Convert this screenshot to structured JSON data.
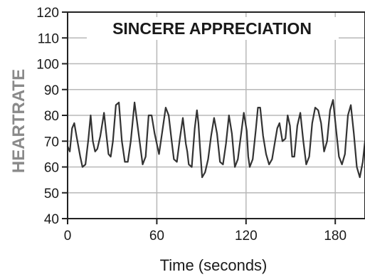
{
  "chart_data": {
    "type": "line",
    "title": "SINCERE APPRECIATION",
    "xlabel": "Time (seconds)",
    "ylabel": "HEARTRATE",
    "xlim": [
      0,
      200
    ],
    "ylim": [
      40,
      120
    ],
    "x_ticks": [
      0,
      60,
      120,
      180
    ],
    "y_ticks": [
      40,
      50,
      60,
      70,
      80,
      90,
      100,
      110,
      120
    ],
    "grid": true,
    "series": [
      {
        "color": "#333333",
        "points": [
          [
            0.0,
            68
          ],
          [
            1.5,
            66
          ],
          [
            3.0,
            75
          ],
          [
            4.5,
            77
          ],
          [
            6.0,
            72
          ],
          [
            8.5,
            64
          ],
          [
            10.0,
            60
          ],
          [
            12.0,
            61
          ],
          [
            14.0,
            71
          ],
          [
            15.5,
            80
          ],
          [
            17.0,
            70
          ],
          [
            18.5,
            66
          ],
          [
            20.0,
            67
          ],
          [
            22.0,
            72
          ],
          [
            24.5,
            81
          ],
          [
            26.0,
            73
          ],
          [
            27.5,
            65
          ],
          [
            29.0,
            64
          ],
          [
            30.5,
            70
          ],
          [
            32.5,
            84
          ],
          [
            34.5,
            85
          ],
          [
            36.5,
            70
          ],
          [
            38.5,
            62
          ],
          [
            40.5,
            62
          ],
          [
            42.5,
            70
          ],
          [
            45.0,
            85
          ],
          [
            47.5,
            74
          ],
          [
            50.5,
            61
          ],
          [
            52.5,
            64
          ],
          [
            54.5,
            80
          ],
          [
            56.5,
            80
          ],
          [
            58.5,
            73
          ],
          [
            61.5,
            65
          ],
          [
            63.5,
            73
          ],
          [
            66.0,
            83
          ],
          [
            68.0,
            80
          ],
          [
            70.0,
            70
          ],
          [
            71.5,
            63
          ],
          [
            73.5,
            62
          ],
          [
            75.5,
            71
          ],
          [
            77.5,
            79
          ],
          [
            79.5,
            69
          ],
          [
            80.5,
            66
          ],
          [
            81.5,
            61
          ],
          [
            83.5,
            60
          ],
          [
            85.5,
            75
          ],
          [
            87.0,
            82
          ],
          [
            88.0,
            77
          ],
          [
            89.0,
            68
          ],
          [
            90.5,
            56
          ],
          [
            92.5,
            58
          ],
          [
            94.5,
            63
          ],
          [
            96.5,
            72
          ],
          [
            98.5,
            79
          ],
          [
            100.5,
            73
          ],
          [
            102.5,
            62
          ],
          [
            104.5,
            61
          ],
          [
            106.5,
            69
          ],
          [
            108.5,
            80
          ],
          [
            110.5,
            73
          ],
          [
            112.5,
            60
          ],
          [
            114.5,
            63
          ],
          [
            116.5,
            72
          ],
          [
            118.5,
            81
          ],
          [
            120.5,
            74
          ],
          [
            121.5,
            64
          ],
          [
            122.5,
            60
          ],
          [
            124.5,
            63
          ],
          [
            126.5,
            74
          ],
          [
            128.0,
            83
          ],
          [
            129.5,
            83
          ],
          [
            131.5,
            72
          ],
          [
            133.5,
            65
          ],
          [
            135.5,
            61
          ],
          [
            137.5,
            63
          ],
          [
            139.5,
            70
          ],
          [
            141.0,
            75
          ],
          [
            142.5,
            77
          ],
          [
            144.5,
            70
          ],
          [
            146.5,
            71
          ],
          [
            148.0,
            80
          ],
          [
            149.5,
            76
          ],
          [
            151.0,
            64
          ],
          [
            152.5,
            64
          ],
          [
            154.5,
            76
          ],
          [
            156.5,
            81
          ],
          [
            158.5,
            70
          ],
          [
            160.5,
            61
          ],
          [
            162.5,
            64
          ],
          [
            164.5,
            77
          ],
          [
            166.5,
            83
          ],
          [
            168.5,
            82
          ],
          [
            170.5,
            77
          ],
          [
            172.5,
            66
          ],
          [
            174.5,
            70
          ],
          [
            176.5,
            82
          ],
          [
            178.5,
            86
          ],
          [
            180.5,
            75
          ],
          [
            182.5,
            64
          ],
          [
            184.5,
            61
          ],
          [
            186.5,
            65
          ],
          [
            188.5,
            80
          ],
          [
            190.5,
            84
          ],
          [
            192.5,
            73
          ],
          [
            194.5,
            60
          ],
          [
            196.5,
            56
          ],
          [
            198.5,
            62
          ],
          [
            200.0,
            70
          ]
        ]
      }
    ]
  }
}
